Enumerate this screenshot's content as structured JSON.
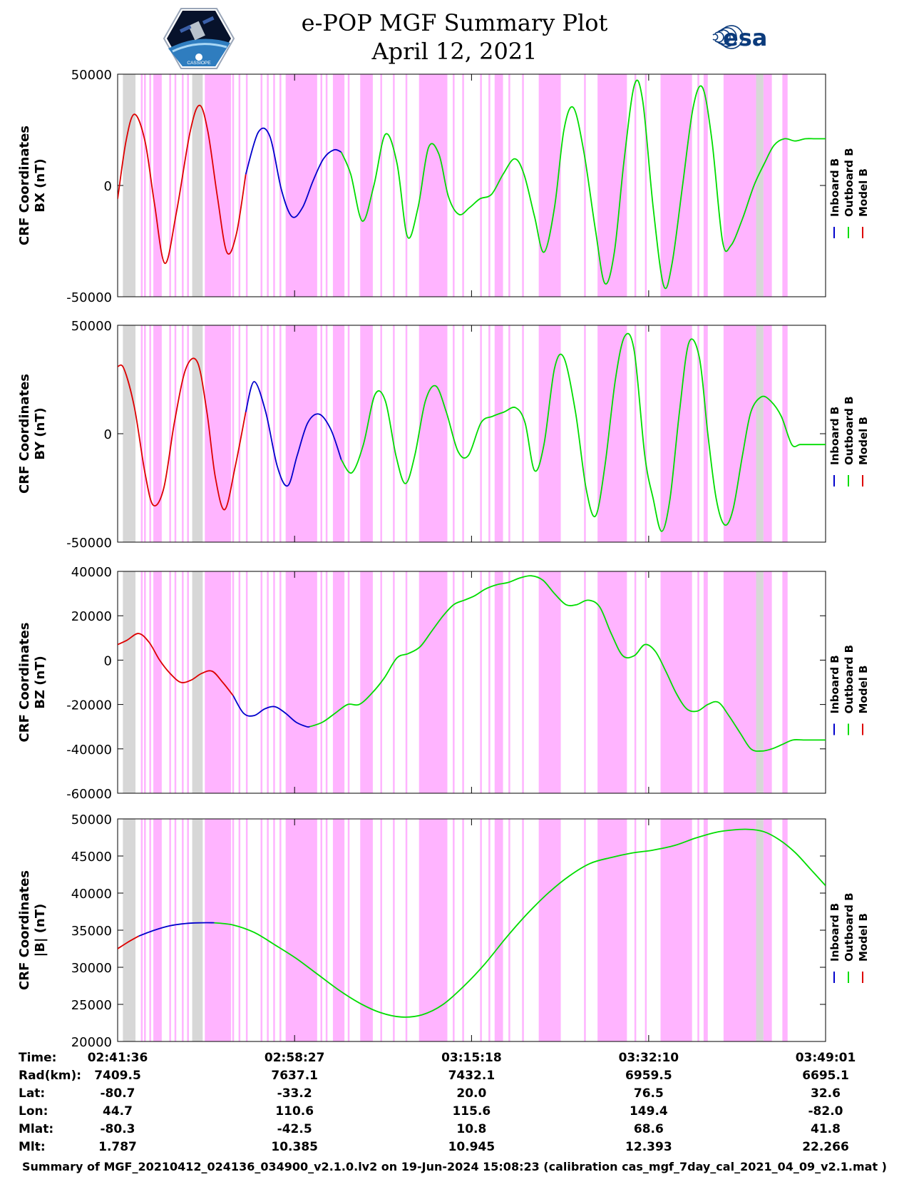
{
  "header": {
    "title_line1": "e-POP MGF Summary Plot",
    "title_line2": "April 12, 2021",
    "left_logo_text": "CASSIOPE",
    "right_logo_text": "esa"
  },
  "colors": {
    "inboard": "#0000cc",
    "outboard": "#00dd00",
    "model": "#dd0000",
    "flag_magenta": "#ffb4ff",
    "flag_gray": "#d7d7d7",
    "logo_blue": "#0b3b7c"
  },
  "chart_data": {
    "type": "line",
    "x_range_minutes": [
      0,
      67.417
    ],
    "x_ticks": [
      {
        "minute": 0,
        "label": "02:41:36"
      },
      {
        "minute": 16.85,
        "label": "02:58:27"
      },
      {
        "minute": 33.7,
        "label": "03:15:18"
      },
      {
        "minute": 50.57,
        "label": "03:32:10"
      },
      {
        "minute": 67.417,
        "label": "03:49:01"
      }
    ],
    "flag_bands": [
      {
        "start": 0.5,
        "end": 1.7,
        "type": "gray"
      },
      {
        "start": 3.4,
        "end": 4.2,
        "type": "magenta"
      },
      {
        "start": 7.1,
        "end": 8.1,
        "type": "gray"
      },
      {
        "start": 8.3,
        "end": 10.8,
        "type": "magenta"
      },
      {
        "start": 16.0,
        "end": 19.0,
        "type": "magenta"
      },
      {
        "start": 20.5,
        "end": 21.6,
        "type": "magenta"
      },
      {
        "start": 23.1,
        "end": 24.3,
        "type": "magenta"
      },
      {
        "start": 28.7,
        "end": 31.4,
        "type": "magenta"
      },
      {
        "start": 35.9,
        "end": 36.7,
        "type": "magenta"
      },
      {
        "start": 40.1,
        "end": 42.2,
        "type": "magenta"
      },
      {
        "start": 45.7,
        "end": 48.5,
        "type": "magenta"
      },
      {
        "start": 51.7,
        "end": 54.7,
        "type": "magenta"
      },
      {
        "start": 55.8,
        "end": 56.2,
        "type": "magenta"
      },
      {
        "start": 57.7,
        "end": 60.8,
        "type": "magenta"
      },
      {
        "start": 60.8,
        "end": 61.5,
        "type": "gray"
      },
      {
        "start": 61.5,
        "end": 62.3,
        "type": "magenta"
      },
      {
        "start": 63.3,
        "end": 63.8,
        "type": "magenta"
      }
    ],
    "flag_lines": [
      2.3,
      2.6,
      3.1,
      5.0,
      5.5,
      6.2,
      6.7,
      8.7,
      9.1,
      9.8,
      10.3,
      11.0,
      11.6,
      12.3,
      13.7,
      14.3,
      14.9,
      15.5,
      17.4,
      18.2,
      19.4,
      19.9,
      22.0,
      25.1,
      26.3,
      27.5,
      32.0,
      32.9,
      34.6,
      35.4,
      37.3,
      38.6,
      44.5,
      49.3,
      50.3,
      55.3
    ],
    "series_legend": [
      "Inboard B",
      "Outboard B",
      "Model B"
    ],
    "panels": [
      {
        "id": "bx",
        "ylabel": [
          "CRF Coordinates",
          "BX (nT)"
        ],
        "ylim": [
          -50000,
          50000
        ],
        "yticks": [
          {
            "value": 50000,
            "label": "50000"
          },
          {
            "value": 0,
            "label": "0"
          },
          {
            "value": -50000,
            "label": "-50000"
          }
        ],
        "segments": [
          {
            "color": "model",
            "x": [
              0,
              0.8,
              1.6,
              2.6,
              3.5,
              4.5,
              5.6,
              6.9,
              7.8,
              8.6,
              9.5,
              10.4,
              11.3,
              12.2
            ],
            "y": [
              -6000,
              20000,
              32000,
              20000,
              -8000,
              -35000,
              -12000,
              24000,
              36000,
              24000,
              -5000,
              -30000,
              -22000,
              5000
            ]
          },
          {
            "color": "inboard",
            "x": [
              12.2,
              13.4,
              14.5,
              15.6,
              16.6,
              17.6,
              18.6,
              19.6,
              20.6,
              21.3
            ],
            "y": [
              5000,
              24000,
              22000,
              -2000,
              -14000,
              -10000,
              2000,
              12000,
              16000,
              15000
            ]
          },
          {
            "color": "outboard",
            "x": [
              21.3,
              22.2,
              23.3,
              24.4,
              25.5,
              26.6,
              27.6,
              28.6,
              29.6,
              30.6,
              31.5,
              32.5,
              33.5,
              34.5,
              35.6,
              36.7,
              37.8,
              38.7,
              39.7,
              40.6,
              41.6,
              42.5,
              43.4,
              44.4,
              45.5,
              46.4,
              47.3,
              48.2,
              49.2,
              50.0,
              51.0,
              52.0,
              52.8,
              53.8,
              54.8,
              55.7,
              56.6,
              57.6,
              58.4,
              59.5,
              60.6,
              61.6,
              62.5,
              63.5,
              64.5,
              65.5,
              66.4,
              67.417
            ],
            "y": [
              15000,
              5000,
              -16000,
              0,
              23000,
              10000,
              -23000,
              -10000,
              17000,
              14000,
              -5000,
              -13000,
              -10000,
              -6000,
              -4000,
              5000,
              12000,
              5000,
              -14000,
              -30000,
              -10000,
              25000,
              35000,
              15000,
              -20000,
              -44000,
              -30000,
              10000,
              45000,
              38000,
              -10000,
              -45000,
              -35000,
              0,
              35000,
              44000,
              20000,
              -25000,
              -27000,
              -15000,
              0,
              10000,
              18000,
              21000,
              20000,
              21000,
              21000,
              21000
            ]
          }
        ]
      },
      {
        "id": "by",
        "ylabel": [
          "CRF Coordinates",
          "BY (nT)"
        ],
        "ylim": [
          -50000,
          50000
        ],
        "yticks": [
          {
            "value": 50000,
            "label": "50000"
          },
          {
            "value": 0,
            "label": "0"
          },
          {
            "value": -50000,
            "label": "-50000"
          }
        ],
        "segments": [
          {
            "color": "model",
            "x": [
              0,
              0.6,
              1.6,
              2.6,
              3.4,
              4.4,
              5.4,
              6.5,
              7.6,
              8.5,
              9.3,
              10.2,
              11.2,
              12.2
            ],
            "y": [
              31000,
              30000,
              12000,
              -18000,
              -33000,
              -25000,
              5000,
              30000,
              33000,
              10000,
              -20000,
              -35000,
              -15000,
              10000
            ]
          },
          {
            "color": "inboard",
            "x": [
              12.2,
              13.0,
              14.1,
              15.2,
              16.2,
              17.1,
              18.1,
              19.2,
              20.3,
              21.3
            ],
            "y": [
              10000,
              24000,
              10000,
              -15000,
              -24000,
              -10000,
              5000,
              9000,
              2000,
              -12000
            ]
          },
          {
            "color": "outboard",
            "x": [
              21.3,
              22.3,
              23.4,
              24.5,
              25.5,
              26.5,
              27.4,
              28.3,
              29.3,
              30.3,
              31.3,
              32.4,
              33.4,
              34.6,
              35.7,
              36.8,
              37.9,
              38.8,
              39.7,
              40.6,
              41.6,
              42.5,
              43.6,
              44.6,
              45.5,
              46.4,
              47.4,
              48.3,
              49.2,
              50.2,
              51.0,
              51.8,
              52.6,
              53.5,
              54.4,
              55.4,
              56.2,
              57.0,
              57.8,
              58.6,
              59.5,
              60.3,
              61.3,
              62.2,
              63.2,
              64.2,
              65.0,
              66.0,
              67.417
            ],
            "y": [
              -12000,
              -18000,
              -5000,
              18000,
              15000,
              -10000,
              -23000,
              -10000,
              15000,
              22000,
              10000,
              -8000,
              -10000,
              5000,
              8000,
              10000,
              12000,
              5000,
              -17000,
              -5000,
              30000,
              35000,
              10000,
              -25000,
              -38000,
              -15000,
              25000,
              45000,
              38000,
              -10000,
              -30000,
              -45000,
              -30000,
              10000,
              42000,
              35000,
              0,
              -30000,
              -42000,
              -35000,
              -10000,
              10000,
              17000,
              15000,
              8000,
              -5000,
              -5000,
              -5000,
              -5000
            ]
          }
        ]
      },
      {
        "id": "bz",
        "ylabel": [
          "CRF Coordinates",
          "BZ (nT)"
        ],
        "ylim": [
          -60000,
          40000
        ],
        "yticks": [
          {
            "value": 40000,
            "label": "40000"
          },
          {
            "value": 20000,
            "label": "20000"
          },
          {
            "value": 0,
            "label": "0"
          },
          {
            "value": -20000,
            "label": "-20000"
          },
          {
            "value": -40000,
            "label": "-40000"
          },
          {
            "value": -60000,
            "label": "-60000"
          }
        ],
        "segments": [
          {
            "color": "model",
            "x": [
              0,
              0.9,
              2.0,
              3.0,
              4.0,
              5.0,
              6.0,
              7.0,
              8.0,
              9.0,
              10.0,
              11.0
            ],
            "y": [
              7000,
              9000,
              12000,
              8000,
              0,
              -6000,
              -10000,
              -9000,
              -6000,
              -5000,
              -10000,
              -16000
            ]
          },
          {
            "color": "inboard",
            "x": [
              11.0,
              12.0,
              13.0,
              14.0,
              15.0,
              16.0,
              17.0,
              18.0,
              18.3
            ],
            "y": [
              -16000,
              -24000,
              -25000,
              -22000,
              -21000,
              -24000,
              -28000,
              -30000,
              -30000
            ]
          },
          {
            "color": "outboard",
            "x": [
              18.3,
              19.5,
              20.7,
              21.9,
              23.0,
              24.2,
              25.4,
              26.6,
              27.7,
              28.8,
              29.9,
              31.0,
              32.0,
              33.0,
              34.0,
              35.0,
              36.1,
              37.2,
              38.3,
              39.4,
              40.5,
              41.6,
              42.7,
              43.7,
              44.8,
              45.9,
              47.0,
              48.1,
              49.2,
              50.2,
              51.2,
              52.2,
              53.2,
              54.2,
              55.2,
              56.2,
              57.2,
              58.2,
              59.3,
              60.3,
              61.3,
              62.3,
              63.3,
              64.3,
              65.3,
              66.3,
              67.417
            ],
            "y": [
              -30000,
              -28000,
              -24000,
              -20000,
              -20000,
              -15000,
              -8000,
              1000,
              3000,
              6000,
              13000,
              20000,
              25000,
              27000,
              29000,
              32000,
              34000,
              35000,
              37000,
              38000,
              36000,
              30000,
              25000,
              25000,
              27000,
              24000,
              12000,
              2000,
              2000,
              7000,
              4000,
              -5000,
              -15000,
              -22000,
              -23000,
              -20000,
              -19000,
              -25000,
              -33000,
              -40000,
              -41000,
              -40000,
              -38000,
              -36000,
              -36000,
              -36000,
              -36000
            ]
          }
        ]
      },
      {
        "id": "btot",
        "ylabel": [
          "CRF Coordinates",
          "|B| (nT)"
        ],
        "ylim": [
          20000,
          50000
        ],
        "yticks": [
          {
            "value": 50000,
            "label": "50000"
          },
          {
            "value": 45000,
            "label": "45000"
          },
          {
            "value": 40000,
            "label": "40000"
          },
          {
            "value": 35000,
            "label": "35000"
          },
          {
            "value": 30000,
            "label": "30000"
          },
          {
            "value": 25000,
            "label": "25000"
          },
          {
            "value": 20000,
            "label": "20000"
          }
        ],
        "segments": [
          {
            "color": "model",
            "x": [
              0,
              1.0,
              2.0
            ],
            "y": [
              32500,
              33400,
              34200
            ]
          },
          {
            "color": "inboard",
            "x": [
              2.0,
              3.5,
              5.0,
              6.5,
              8.0,
              9.2
            ],
            "y": [
              34200,
              35000,
              35600,
              35900,
              36000,
              36000
            ]
          },
          {
            "color": "outboard",
            "x": [
              9.2,
              11.0,
              13.0,
              15.0,
              17.0,
              19.0,
              21.0,
              23.0,
              25.0,
              27.0,
              29.0,
              31.0,
              33.0,
              35.0,
              37.0,
              39.0,
              41.0,
              43.0,
              45.0,
              47.0,
              49.0,
              51.0,
              53.0,
              55.0,
              57.0,
              58.5,
              60.0,
              61.5,
              63.0,
              64.5,
              66.0,
              67.417
            ],
            "y": [
              36000,
              35700,
              34700,
              33000,
              31200,
              29100,
              27000,
              25200,
              23900,
              23300,
              23600,
              25000,
              27500,
              30500,
              34000,
              37200,
              40000,
              42300,
              44000,
              44800,
              45400,
              45800,
              46400,
              47400,
              48200,
              48500,
              48600,
              48300,
              47200,
              45500,
              43200,
              41000
            ]
          }
        ]
      }
    ],
    "ephemeris": {
      "row_labels": [
        "Time:",
        "Rad(km):",
        "Lat:",
        "Lon:",
        "Mlat:",
        "Mlt:"
      ],
      "columns": [
        [
          "02:41:36",
          "7409.5",
          "-80.7",
          "44.7",
          "-80.3",
          "1.787"
        ],
        [
          "02:58:27",
          "7637.1",
          "-33.2",
          "110.6",
          "-42.5",
          "10.385"
        ],
        [
          "03:15:18",
          "7432.1",
          "20.0",
          "115.6",
          "10.8",
          "10.945"
        ],
        [
          "03:32:10",
          "6959.5",
          "76.5",
          "149.4",
          "68.6",
          "12.393"
        ],
        [
          "03:49:01",
          "6695.1",
          "32.6",
          "-82.0",
          "41.8",
          "22.266"
        ]
      ]
    }
  },
  "footer": {
    "text": "Summary of MGF_20210412_024136_034900_v2.1.0.lv2 on 19-Jun-2024 15:08:23 (calibration cas_mgf_7day_cal_2021_04_09_v2.1.mat )"
  }
}
